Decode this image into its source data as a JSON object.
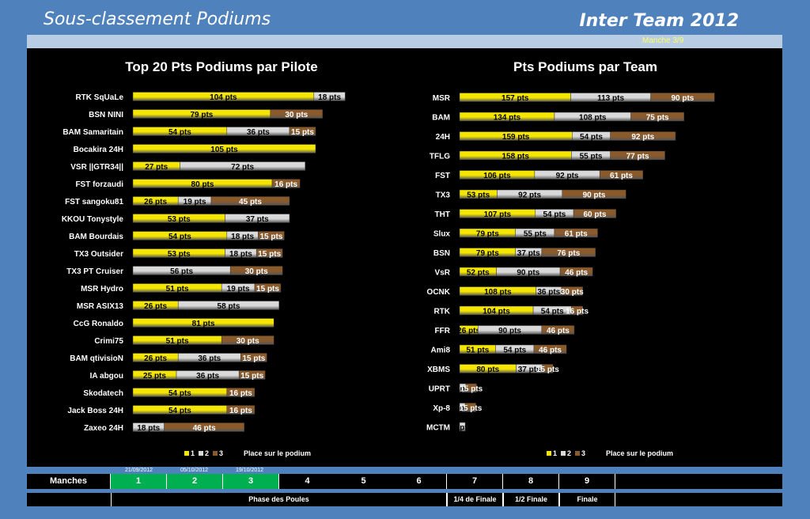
{
  "header": {
    "title_left": "Sous-classement Podiums",
    "title_right": "Inter Team 2012",
    "manche": "Manche 3/9"
  },
  "colors": {
    "p1": "#f5e600",
    "p2": "#d9d9d9",
    "p3": "#8b5a2b"
  },
  "chart_data": [
    {
      "type": "bar",
      "orientation": "horizontal",
      "stacked": true,
      "title": "Top 20 Pts Podiums par Pilote",
      "categories": [
        "RTK SqUaLe",
        "BSN NINI",
        "BAM Samaritain",
        "Bocakira 24H",
        "VSR ||GTR34||",
        "FST forzaudi",
        "FST sangoku81",
        "KKOU Tonystyle",
        "BAM Bourdais",
        "TX3 Outsider",
        "TX3 PT Cruiser",
        "MSR Hydro",
        "MSR ASIX13",
        "CcG Ronaldo",
        "Crimi75",
        "BAM qtivisioN",
        "IA abgou",
        "Skodatech",
        "Jack Boss 24H",
        "Zaxeo 24H"
      ],
      "series": [
        {
          "name": "1",
          "values": [
            104,
            79,
            54,
            105,
            27,
            80,
            26,
            53,
            54,
            53,
            0,
            51,
            26,
            81,
            51,
            26,
            25,
            54,
            54,
            0
          ]
        },
        {
          "name": "2",
          "values": [
            18,
            0,
            36,
            0,
            72,
            0,
            19,
            37,
            18,
            18,
            56,
            19,
            58,
            0,
            0,
            36,
            36,
            0,
            0,
            18
          ]
        },
        {
          "name": "3",
          "values": [
            0,
            30,
            15,
            0,
            0,
            16,
            45,
            0,
            15,
            15,
            30,
            15,
            0,
            0,
            30,
            15,
            15,
            16,
            16,
            46
          ]
        }
      ],
      "legend_title": "Place sur le podium",
      "unit": "pts"
    },
    {
      "type": "bar",
      "orientation": "horizontal",
      "stacked": true,
      "title": "Pts Podiums par Team",
      "categories": [
        "MSR",
        "BAM",
        "24H",
        "TFLG",
        "FST",
        "TX3",
        "THT",
        "Slux",
        "BSN",
        "VsR",
        "OCNK",
        "RTK",
        "FFR",
        "Ami8",
        "XBMS",
        "UPRT",
        "Xp-8",
        "MCTM"
      ],
      "series": [
        {
          "name": "1",
          "values": [
            157,
            134,
            159,
            158,
            106,
            53,
            107,
            79,
            79,
            52,
            108,
            104,
            26,
            51,
            80,
            0,
            0,
            0
          ]
        },
        {
          "name": "2",
          "values": [
            113,
            108,
            54,
            55,
            92,
            92,
            54,
            55,
            37,
            90,
            36,
            54,
            90,
            54,
            37,
            9,
            8,
            8
          ]
        },
        {
          "name": "3",
          "values": [
            90,
            75,
            92,
            77,
            61,
            90,
            60,
            61,
            76,
            46,
            30,
            16,
            46,
            46,
            15,
            15,
            15,
            0
          ]
        }
      ],
      "legend_title": "Place sur le podium",
      "unit": "pts"
    }
  ],
  "legend": {
    "l1": "1",
    "l2": "2",
    "l3": "3",
    "title": "Place sur le podium"
  },
  "footer": {
    "manches_label": "Manches",
    "manches": [
      "1",
      "2",
      "3",
      "4",
      "5",
      "6",
      "7",
      "8",
      "9"
    ],
    "dates": [
      "21/09/2012",
      "05/10/2012",
      "19/10/2012"
    ],
    "phase_poules": "Phase des Poules",
    "quart": "1/4 de Finale",
    "demi": "1/2 Finale",
    "finale": "Finale"
  }
}
